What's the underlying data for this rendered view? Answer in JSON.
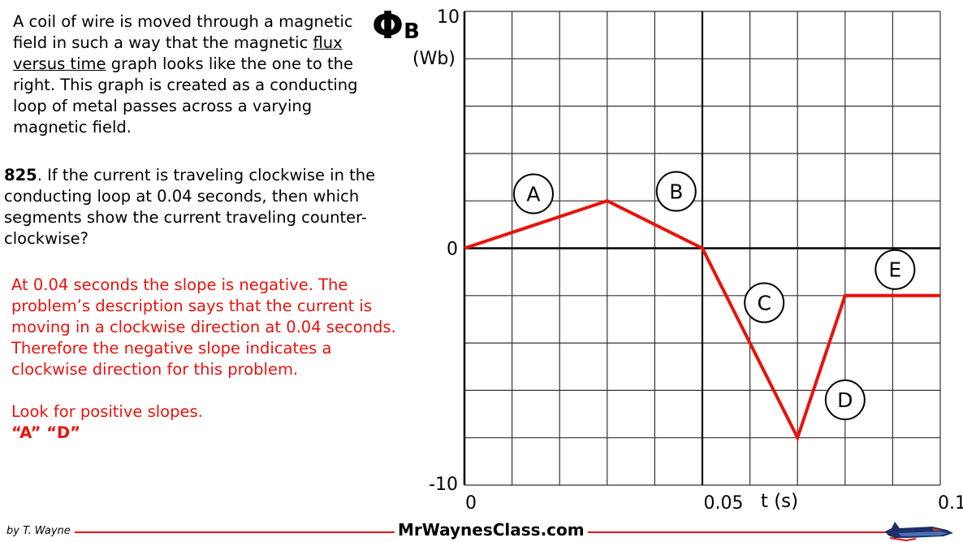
{
  "intro": {
    "line1_before": "A  coil of wire is moved through a magnetic field in such a way that the magnetic ",
    "line1_underlined": "flux versus time",
    "line1_after": " graph looks like the one to the right. This graph is created as a conducting loop of metal passes across a varying magnetic field."
  },
  "question": {
    "number": "825",
    "text": ". If the current is traveling clockwise in the conducting loop at 0.04 seconds, then which segments show the current traveling counter-clockwise?"
  },
  "answer": {
    "paragraph1": "At 0.04 seconds the slope is negative. The problem’s description says that the current is moving in a clockwise direction at 0.04 seconds. Therefore the negative slope indicates a clockwise direction for this problem.",
    "paragraph2": "Look for positive slopes.",
    "final": "“A”  “D”"
  },
  "chart_data": {
    "type": "line",
    "ylabel_symbol": "Φ",
    "ylabel_subscript": "B",
    "ylabel_unit": "(Wb)",
    "xlabel": "t (s)",
    "xlim": [
      0,
      0.1
    ],
    "ylim": [
      -10,
      10
    ],
    "x_tick_labels": [
      {
        "value": 0,
        "label": "0"
      },
      {
        "value": 0.05,
        "label": "0.05"
      },
      {
        "value": 0.1,
        "label": "0.1"
      }
    ],
    "y_tick_labels": [
      {
        "value": 10,
        "label": "10"
      },
      {
        "value": 0,
        "label": "0"
      },
      {
        "value": -10,
        "label": "-10"
      }
    ],
    "grid": true,
    "grid_x_step": 0.01,
    "grid_y_step": 2,
    "line_color": "#e8120c",
    "series": [
      {
        "x": [
          0,
          0.03,
          0.05,
          0.07,
          0.08,
          0.1
        ],
        "y": [
          0,
          2,
          0,
          -8,
          -2,
          -2
        ]
      }
    ],
    "annotations": [
      {
        "label": "A",
        "x": 0.0145,
        "y": 2.3
      },
      {
        "label": "B",
        "x": 0.0445,
        "y": 2.4
      },
      {
        "label": "C",
        "x": 0.063,
        "y": -2.3
      },
      {
        "label": "D",
        "x": 0.08,
        "y": -6.4
      },
      {
        "label": "E",
        "x": 0.0905,
        "y": -0.9
      }
    ]
  },
  "footer": {
    "author": "by T. Wayne",
    "site": "MrWaynesClass.com"
  }
}
